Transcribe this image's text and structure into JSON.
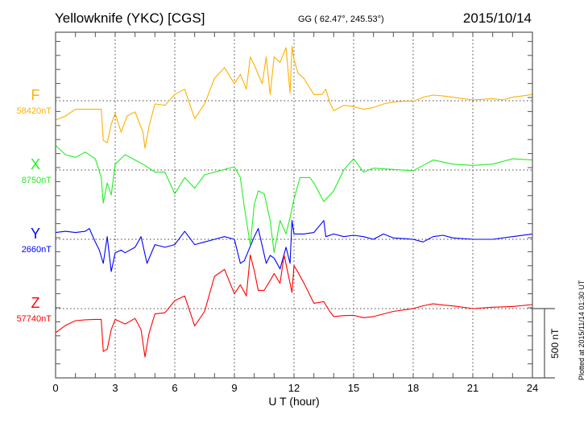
{
  "header": {
    "station": "Yellowknife (YKC)  [CGS]",
    "coords": "GG ( 62.47°, 245.53°)",
    "date": "2015/10/14"
  },
  "footer": {
    "plotted": "Plotted at 2015/11/14 01:30 UT",
    "scale_label": "500 nT"
  },
  "colors": {
    "F": "#ffb000",
    "X": "#22ee22",
    "Y": "#0000ff",
    "Z": "#ff0000"
  },
  "chart_data": {
    "type": "line",
    "title": "Yellowknife (YKC)  [CGS]",
    "xlabel": "U T (hour)",
    "xlim": [
      0,
      24
    ],
    "xticks": [
      "0",
      "3",
      "6",
      "9",
      "12",
      "15",
      "18",
      "21",
      "24"
    ],
    "xtick_values": [
      0,
      3,
      6,
      9,
      12,
      15,
      18,
      21,
      24
    ],
    "scale_bar_nT": 500,
    "grid": "dotted at 3-hour marks and component baselines",
    "value_note": "values are nT offsets from each component's baseline",
    "series": [
      {
        "name": "F",
        "baseline_label": "58420nT",
        "baseline": 58420,
        "points": [
          [
            0,
            -138
          ],
          [
            0.5,
            -109
          ],
          [
            1,
            -61
          ],
          [
            1.5,
            -61
          ],
          [
            2,
            -61
          ],
          [
            2.3,
            -61
          ],
          [
            2.4,
            -282
          ],
          [
            2.6,
            -300
          ],
          [
            2.8,
            -167
          ],
          [
            3,
            -90
          ],
          [
            3.3,
            -224
          ],
          [
            3.6,
            -109
          ],
          [
            4,
            -80
          ],
          [
            4.4,
            -224
          ],
          [
            4.5,
            -339
          ],
          [
            4.7,
            -186
          ],
          [
            5,
            -23
          ],
          [
            5.5,
            -33
          ],
          [
            6,
            44
          ],
          [
            6.5,
            82
          ],
          [
            7,
            -128
          ],
          [
            7.5,
            -23
          ],
          [
            8,
            159
          ],
          [
            8.5,
            236
          ],
          [
            9,
            121
          ],
          [
            9.3,
            188
          ],
          [
            9.6,
            82
          ],
          [
            9.8,
            312
          ],
          [
            10,
            255
          ],
          [
            10.4,
            121
          ],
          [
            10.6,
            312
          ],
          [
            10.8,
            44
          ],
          [
            11,
            312
          ],
          [
            11.3,
            274
          ],
          [
            11.6,
            379
          ],
          [
            11.8,
            54
          ],
          [
            11.9,
            389
          ],
          [
            12,
            293
          ],
          [
            12.2,
            197
          ],
          [
            12.5,
            159
          ],
          [
            13,
            44
          ],
          [
            13.4,
            44
          ],
          [
            13.6,
            82
          ],
          [
            13.8,
            -13
          ],
          [
            14,
            -71
          ],
          [
            14.5,
            -33
          ],
          [
            15,
            -42
          ],
          [
            15.5,
            -61
          ],
          [
            16,
            -48
          ],
          [
            16.5,
            -23
          ],
          [
            17,
            -10
          ],
          [
            17.5,
            -4
          ],
          [
            18,
            -4
          ],
          [
            18.5,
            25
          ],
          [
            19,
            40
          ],
          [
            19.5,
            34
          ],
          [
            20,
            25
          ],
          [
            20.5,
            15
          ],
          [
            21,
            6
          ],
          [
            22,
            15
          ],
          [
            22.5,
            6
          ],
          [
            23,
            25
          ],
          [
            24,
            44
          ]
        ]
      },
      {
        "name": "X",
        "baseline_label": "8750nT",
        "baseline": 8750,
        "points": [
          [
            0,
            176
          ],
          [
            0.5,
            109
          ],
          [
            1,
            90
          ],
          [
            1.5,
            128
          ],
          [
            2,
            80
          ],
          [
            2.3,
            -54
          ],
          [
            2.4,
            -236
          ],
          [
            2.6,
            -92
          ],
          [
            2.8,
            -178
          ],
          [
            3,
            42
          ],
          [
            3.5,
            109
          ],
          [
            4,
            71
          ],
          [
            4.5,
            33
          ],
          [
            5,
            -15
          ],
          [
            5.5,
            -15
          ],
          [
            6,
            -169
          ],
          [
            6.5,
            -54
          ],
          [
            7,
            -130
          ],
          [
            7.5,
            -34
          ],
          [
            8,
            -15
          ],
          [
            8.5,
            4
          ],
          [
            9,
            23
          ],
          [
            9.3,
            -54
          ],
          [
            9.5,
            -264
          ],
          [
            9.8,
            -533
          ],
          [
            10,
            -245
          ],
          [
            10.2,
            -149
          ],
          [
            10.5,
            -169
          ],
          [
            10.8,
            -360
          ],
          [
            11,
            -590
          ],
          [
            11.3,
            -360
          ],
          [
            11.6,
            -456
          ],
          [
            11.8,
            -341
          ],
          [
            12,
            -207
          ],
          [
            12.3,
            -54
          ],
          [
            12.8,
            -54
          ],
          [
            13,
            -92
          ],
          [
            13.5,
            -226
          ],
          [
            14,
            -149
          ],
          [
            14.5,
            0
          ],
          [
            15,
            80
          ],
          [
            15.5,
            -15
          ],
          [
            16,
            13
          ],
          [
            17,
            4
          ],
          [
            18,
            -6
          ],
          [
            18.5,
            33
          ],
          [
            19,
            71
          ],
          [
            20,
            42
          ],
          [
            21,
            33
          ],
          [
            22,
            42
          ],
          [
            23,
            80
          ],
          [
            24,
            71
          ]
        ]
      },
      {
        "name": "Y",
        "baseline_label": "2660nT",
        "baseline": 2660,
        "points": [
          [
            0,
            48
          ],
          [
            0.5,
            57
          ],
          [
            1,
            48
          ],
          [
            1.5,
            57
          ],
          [
            1.7,
            77
          ],
          [
            2,
            -19
          ],
          [
            2.2,
            -77
          ],
          [
            2.4,
            -172
          ],
          [
            2.6,
            19
          ],
          [
            2.8,
            -230
          ],
          [
            3,
            -96
          ],
          [
            3.3,
            -77
          ],
          [
            3.5,
            -96
          ],
          [
            4,
            -57
          ],
          [
            4.3,
            19
          ],
          [
            4.6,
            -172
          ],
          [
            5,
            -38
          ],
          [
            5.5,
            -57
          ],
          [
            6,
            -38
          ],
          [
            6.5,
            57
          ],
          [
            7,
            -38
          ],
          [
            7.5,
            -19
          ],
          [
            8,
            0
          ],
          [
            8.5,
            19
          ],
          [
            9,
            0
          ],
          [
            9.3,
            -172
          ],
          [
            9.5,
            -153
          ],
          [
            10,
            19
          ],
          [
            10.2,
            77
          ],
          [
            10.6,
            -172
          ],
          [
            10.8,
            -115
          ],
          [
            11,
            -134
          ],
          [
            11.3,
            -211
          ],
          [
            11.6,
            -57
          ],
          [
            11.8,
            -172
          ],
          [
            11.9,
            134
          ],
          [
            12,
            38
          ],
          [
            12.5,
            38
          ],
          [
            13,
            48
          ],
          [
            13.5,
            134
          ],
          [
            13.6,
            19
          ],
          [
            14,
            38
          ],
          [
            14.5,
            19
          ],
          [
            15,
            29
          ],
          [
            15.5,
            19
          ],
          [
            16,
            0
          ],
          [
            16.5,
            38
          ],
          [
            17,
            10
          ],
          [
            18,
            0
          ],
          [
            18.5,
            -19
          ],
          [
            19,
            19
          ],
          [
            19.5,
            29
          ],
          [
            20,
            10
          ],
          [
            21,
            0
          ],
          [
            22,
            0
          ],
          [
            23,
            19
          ],
          [
            24,
            38
          ]
        ]
      },
      {
        "name": "Z",
        "baseline_label": "57740nT",
        "baseline": 57740,
        "points": [
          [
            0,
            -172
          ],
          [
            0.5,
            -120
          ],
          [
            1,
            -86
          ],
          [
            1.5,
            -80
          ],
          [
            2,
            -77
          ],
          [
            2.3,
            -77
          ],
          [
            2.4,
            -306
          ],
          [
            2.6,
            -290
          ],
          [
            2.8,
            -150
          ],
          [
            3,
            -77
          ],
          [
            3.5,
            -110
          ],
          [
            4,
            -70
          ],
          [
            4.3,
            -150
          ],
          [
            4.5,
            -345
          ],
          [
            4.7,
            -180
          ],
          [
            5,
            -38
          ],
          [
            5.5,
            -30
          ],
          [
            6,
            57
          ],
          [
            6.5,
            90
          ],
          [
            7,
            -124
          ],
          [
            7.5,
            -20
          ],
          [
            8,
            230
          ],
          [
            8.5,
            280
          ],
          [
            9,
            105
          ],
          [
            9.3,
            170
          ],
          [
            9.6,
            90
          ],
          [
            9.8,
            383
          ],
          [
            10,
            270
          ],
          [
            10.2,
            130
          ],
          [
            10.5,
            130
          ],
          [
            10.8,
            200
          ],
          [
            11,
            250
          ],
          [
            11.3,
            180
          ],
          [
            11.5,
            383
          ],
          [
            11.9,
            115
          ],
          [
            12,
            307
          ],
          [
            12.2,
            260
          ],
          [
            12.5,
            182
          ],
          [
            13,
            38
          ],
          [
            13.5,
            50
          ],
          [
            13.8,
            -20
          ],
          [
            14,
            -57
          ],
          [
            14.5,
            -50
          ],
          [
            15,
            -48
          ],
          [
            15.5,
            -65
          ],
          [
            16,
            -57
          ],
          [
            17,
            -20
          ],
          [
            18,
            0
          ],
          [
            18.5,
            20
          ],
          [
            19,
            34
          ],
          [
            19.5,
            25
          ],
          [
            20,
            19
          ],
          [
            21,
            0
          ],
          [
            22,
            10
          ],
          [
            23,
            15
          ],
          [
            24,
            29
          ]
        ]
      }
    ]
  }
}
